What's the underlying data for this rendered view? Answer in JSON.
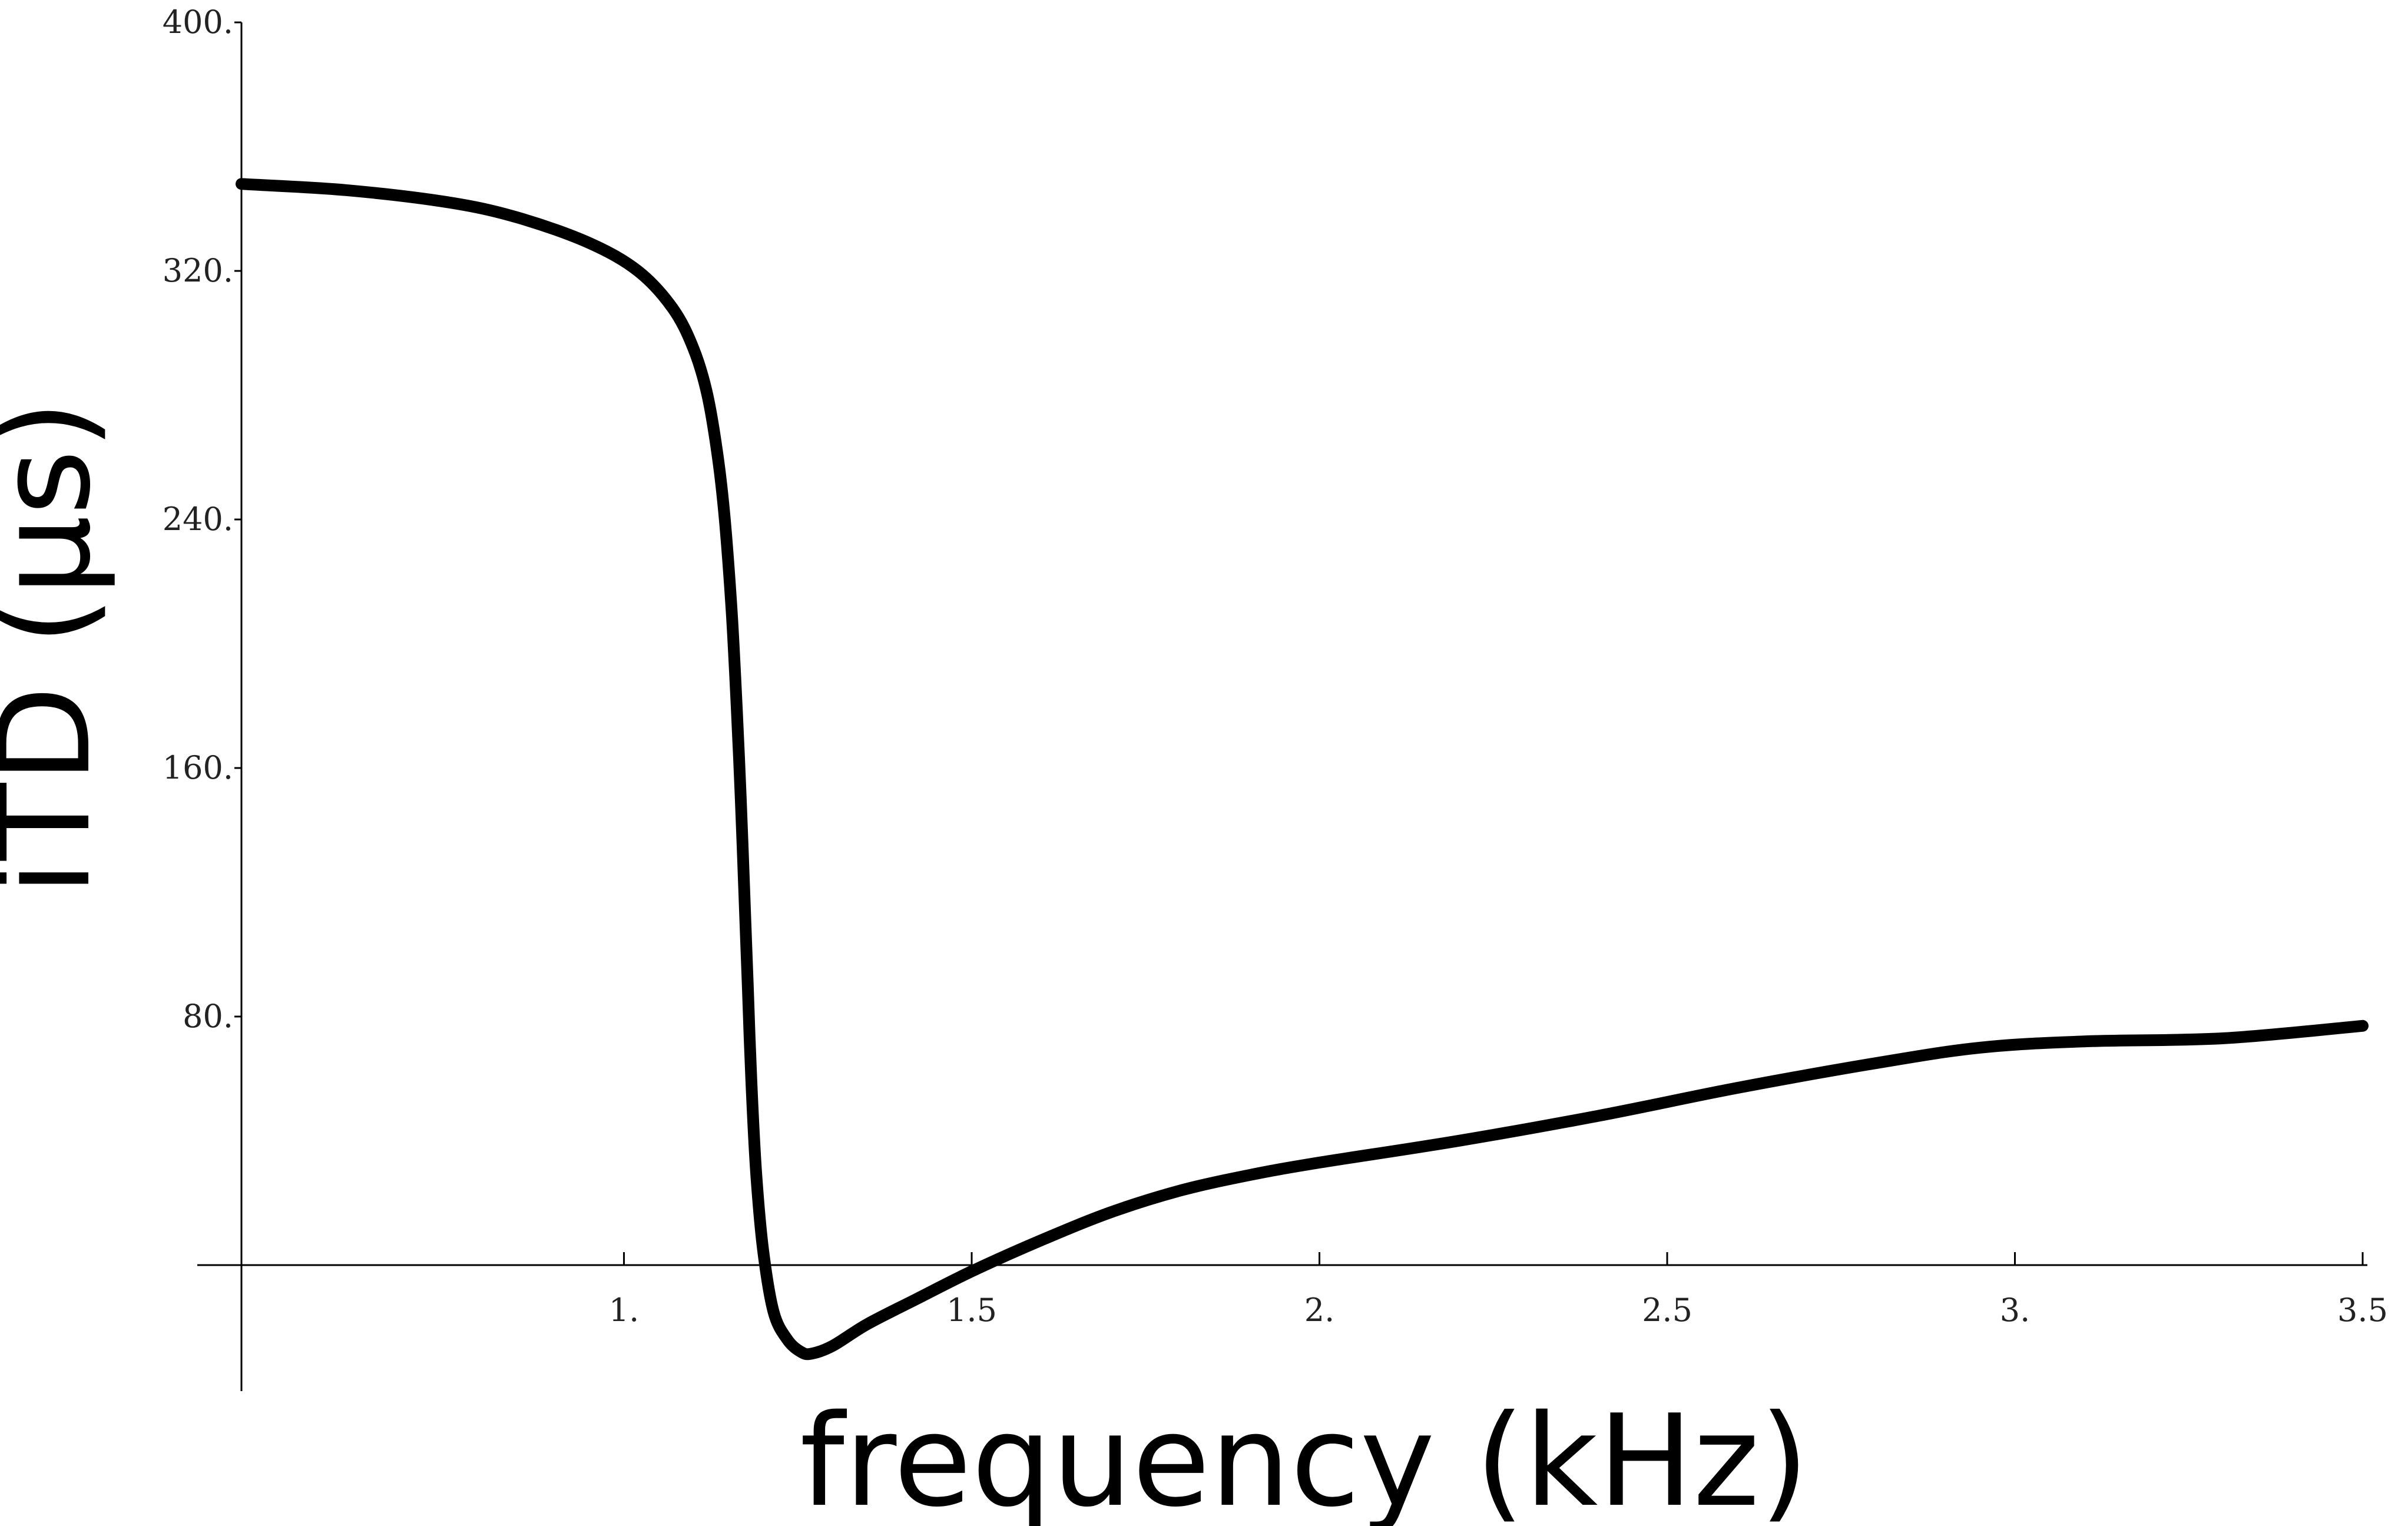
{
  "chart_data": {
    "type": "line",
    "title": "",
    "xlabel": "frequency (kHz)",
    "ylabel": "iTD (µs)",
    "xlim": [
      0.45,
      3.5
    ],
    "ylim": [
      -40,
      400
    ],
    "xticks": [
      {
        "value": 1.0,
        "label": "1."
      },
      {
        "value": 1.5,
        "label": "1.5"
      },
      {
        "value": 2.0,
        "label": "2."
      },
      {
        "value": 2.5,
        "label": "2.5"
      },
      {
        "value": 3.0,
        "label": "3."
      },
      {
        "value": 3.5,
        "label": "3.5"
      }
    ],
    "yticks": [
      {
        "value": 80,
        "label": "80."
      },
      {
        "value": 160,
        "label": "160."
      },
      {
        "value": 240,
        "label": "240."
      },
      {
        "value": 320,
        "label": "320."
      },
      {
        "value": 400,
        "label": "400."
      }
    ],
    "grid": false,
    "legend": "none",
    "series": [
      {
        "color": "#000000",
        "points": [
          [
            0.45,
            348
          ],
          [
            0.6,
            346
          ],
          [
            0.75,
            342
          ],
          [
            0.85,
            337
          ],
          [
            0.95,
            329
          ],
          [
            1.02,
            320
          ],
          [
            1.07,
            308
          ],
          [
            1.1,
            295
          ],
          [
            1.12,
            280
          ],
          [
            1.135,
            260
          ],
          [
            1.145,
            240
          ],
          [
            1.155,
            210
          ],
          [
            1.162,
            180
          ],
          [
            1.168,
            150
          ],
          [
            1.173,
            120
          ],
          [
            1.178,
            90
          ],
          [
            1.183,
            60
          ],
          [
            1.19,
            30
          ],
          [
            1.2,
            5
          ],
          [
            1.215,
            -15
          ],
          [
            1.235,
            -24
          ],
          [
            1.255,
            -28
          ],
          [
            1.27,
            -28.5
          ],
          [
            1.3,
            -26
          ],
          [
            1.35,
            -19
          ],
          [
            1.42,
            -11
          ],
          [
            1.5,
            -2
          ],
          [
            1.6,
            8
          ],
          [
            1.7,
            17
          ],
          [
            1.8,
            24
          ],
          [
            1.9,
            29
          ],
          [
            2.0,
            33
          ],
          [
            2.2,
            40
          ],
          [
            2.4,
            48
          ],
          [
            2.6,
            57
          ],
          [
            2.8,
            65
          ],
          [
            2.95,
            70
          ],
          [
            3.1,
            72
          ],
          [
            3.3,
            73
          ],
          [
            3.5,
            77
          ]
        ]
      }
    ]
  }
}
